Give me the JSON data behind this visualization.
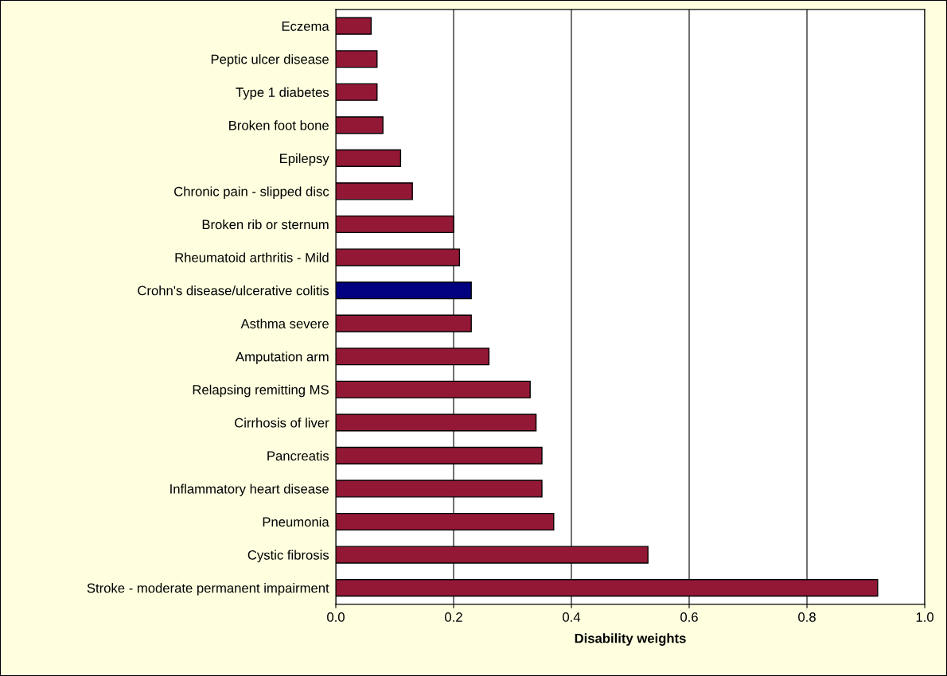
{
  "chart_data": {
    "type": "bar",
    "orientation": "horizontal",
    "xlabel": "Disability weights",
    "categories": [
      "Eczema",
      "Peptic ulcer disease",
      "Type 1 diabetes",
      "Broken foot bone",
      "Epilepsy",
      "Chronic pain - slipped disc",
      "Broken rib or sternum",
      "Rheumatoid arthritis - Mild",
      "Crohn's disease/ulcerative colitis",
      "Asthma severe",
      "Amputation arm",
      "Relapsing remitting MS",
      "Cirrhosis of liver",
      "Pancreatis",
      "Inflammatory heart disease",
      "Pneumonia",
      "Cystic fibrosis",
      "Stroke - moderate permanent impairment"
    ],
    "values": [
      0.06,
      0.07,
      0.07,
      0.08,
      0.11,
      0.13,
      0.2,
      0.21,
      0.23,
      0.23,
      0.26,
      0.33,
      0.34,
      0.35,
      0.35,
      0.37,
      0.53,
      0.92
    ],
    "colors": [
      "#931836",
      "#931836",
      "#931836",
      "#931836",
      "#931836",
      "#931836",
      "#931836",
      "#931836",
      "#000080",
      "#931836",
      "#931836",
      "#931836",
      "#931836",
      "#931836",
      "#931836",
      "#931836",
      "#931836",
      "#931836"
    ],
    "xlim": [
      0,
      1.0
    ],
    "xticks": [
      {
        "value": 0,
        "label": "0.0"
      },
      {
        "value": 0.2,
        "label": "0.2"
      },
      {
        "value": 0.4,
        "label": "0.4"
      },
      {
        "value": 0.6,
        "label": "0.6"
      },
      {
        "value": 0.8,
        "label": "0.8"
      },
      {
        "value": 1.0,
        "label": "1.0"
      }
    ],
    "grid": "x",
    "legend": false
  }
}
